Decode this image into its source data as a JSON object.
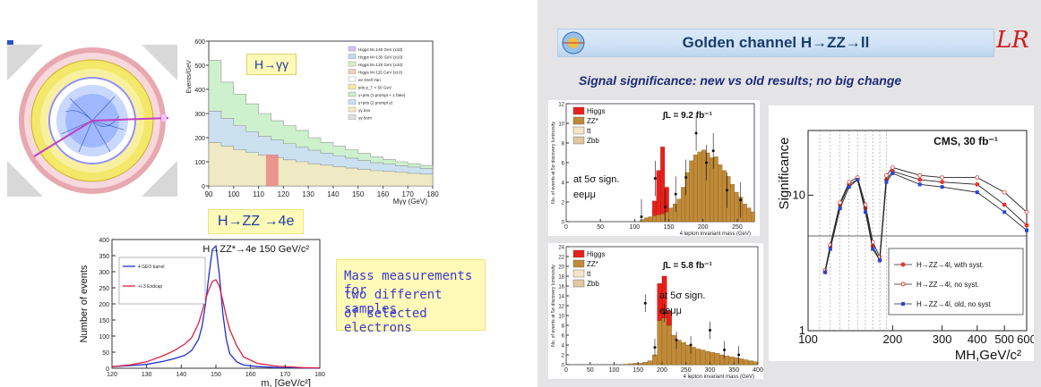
{
  "slide_right": {
    "title": "Golden channel H→ZZ→ll",
    "subtitle": "Signal significance: new vs old results; no big change",
    "logo_text": "LR"
  },
  "left_text": {
    "hgg_label": "H→γγ",
    "hzz4e_title": "H→ZZ →4e",
    "mass_box_line1": "Mass measurements for",
    "mass_box_line2": "two different samples",
    "mass_box_line3": "of selected electrons"
  },
  "chart_data": [
    {
      "type": "area",
      "id": "hgg",
      "xlabel": "Mγγ (GeV)",
      "ylabel": "Events/GeV",
      "xlim": [
        90,
        180
      ],
      "ylim": [
        0,
        600
      ],
      "x_ticks": [
        90,
        100,
        110,
        120,
        130,
        140,
        150,
        160,
        170,
        180
      ],
      "y_ticks": [
        0,
        100,
        200,
        300,
        400,
        500,
        600
      ],
      "legend": [
        "Higgs M=140 GeV (x10)",
        "Higgs M=130 GeV (x10)",
        "Higgs M=120 GeV (x10)",
        "Higgs M=115 GeV (x10)",
        "ee Drell Yan",
        "jets p_T > 50 GeV",
        "γ+jets (1 prompt + 1 fake)",
        "γ+jets (2 prompt γ)",
        "γγ box",
        "γγ born"
      ],
      "legend_position": "top-right",
      "x": [
        90,
        95,
        100,
        105,
        110,
        115,
        120,
        125,
        130,
        135,
        140,
        145,
        150,
        155,
        160,
        165,
        170,
        175,
        180
      ],
      "series": [
        {
          "values": [
            520,
            430,
            380,
            340,
            300,
            270,
            250,
            230,
            200,
            180,
            165,
            150,
            135,
            120,
            110,
            100,
            92,
            85,
            80
          ]
        },
        {
          "values": [
            310,
            280,
            250,
            225,
            205,
            190,
            175,
            160,
            148,
            136,
            125,
            115,
            105,
            96,
            90,
            84,
            78,
            72,
            68
          ]
        },
        {
          "values": [
            180,
            165,
            150,
            138,
            128,
            118,
            108,
            100,
            92,
            86,
            80,
            74,
            68,
            63,
            60,
            56,
            52,
            49,
            46
          ]
        }
      ]
    },
    {
      "type": "line",
      "id": "hzz4e",
      "title": "H→ZZ*→4e 150 GeV/c²",
      "xlabel": "m, [GeV/c²]",
      "ylabel": "Number of events",
      "xlim": [
        120,
        180
      ],
      "ylim": [
        0,
        400
      ],
      "x_ticks": [
        120,
        130,
        140,
        150,
        160,
        170,
        180
      ],
      "y_ticks": [
        0,
        50,
        100,
        150,
        200,
        250,
        300,
        350,
        400
      ],
      "x": [
        120,
        125,
        130,
        135,
        138,
        141,
        143,
        145,
        146,
        147,
        148,
        149,
        150,
        151,
        152,
        153,
        154,
        156,
        158,
        162,
        168,
        175,
        180
      ],
      "series": [
        {
          "values": [
            5,
            8,
            12,
            22,
            30,
            40,
            55,
            90,
            130,
            200,
            290,
            370,
            380,
            290,
            170,
            90,
            45,
            20,
            10,
            5,
            2,
            1,
            0
          ]
        },
        {
          "values": [
            5,
            10,
            20,
            40,
            55,
            75,
            95,
            140,
            175,
            215,
            245,
            270,
            275,
            255,
            210,
            160,
            120,
            70,
            35,
            15,
            6,
            2,
            1
          ]
        }
      ],
      "legend_lines": [
        "4 GEO barrel",
        "+/-3 Endcap"
      ]
    },
    {
      "type": "bar",
      "id": "ll_92",
      "annotation": "∫L = 9.2 fb⁻¹",
      "text_note_line1": "at 5σ sign.",
      "text_note_line2": "eeμμ",
      "xlabel": "4 lepton invariant mass (GeV)",
      "ylabel": "No. of events at 5σ discovery luminosity",
      "xlim": [
        0,
        275
      ],
      "ylim": [
        0,
        12
      ],
      "x_ticks": [
        0,
        50,
        100,
        150,
        200,
        250
      ],
      "y_ticks": [
        0,
        2,
        4,
        6,
        8,
        10,
        12
      ],
      "legend": [
        "Higgs",
        "ZZ*",
        "tt",
        "Zbb"
      ],
      "bin_width": 6,
      "bins_x": [
        108,
        114,
        120,
        126,
        132,
        138,
        144,
        150,
        156,
        162,
        168,
        174,
        180,
        186,
        192,
        198,
        204,
        210,
        216,
        222,
        228,
        234,
        240,
        246,
        252,
        258,
        264,
        270
      ],
      "zz": [
        0.2,
        0.4,
        0.5,
        0.6,
        0.7,
        0.8,
        1.0,
        1.4,
        1.8,
        2.3,
        3.5,
        5.0,
        6.2,
        6.8,
        7.1,
        7.3,
        7.0,
        6.5,
        6.6,
        5.8,
        5.2,
        4.6,
        3.8,
        3.0,
        2.5,
        1.8,
        1.4,
        1.0
      ],
      "higgs": [
        0,
        0,
        0,
        1.5,
        4.5,
        6.8,
        2.5,
        0,
        0,
        0,
        0,
        0,
        0,
        0,
        0,
        0,
        0,
        0,
        0,
        0,
        0,
        0,
        0,
        0,
        0,
        0,
        0,
        0
      ],
      "data_points": [
        [
          110,
          0.5
        ],
        [
          130,
          4.4
        ],
        [
          145,
          1.5
        ],
        [
          160,
          2.8
        ],
        [
          175,
          4.5
        ],
        [
          190,
          9.0
        ],
        [
          205,
          6.0
        ],
        [
          215,
          7.2
        ],
        [
          235,
          3.2
        ],
        [
          255,
          2.2
        ]
      ]
    },
    {
      "type": "bar",
      "id": "ll_58",
      "annotation": "∫L = 5.8 fb⁻¹",
      "text_note_line1": "at 5σ sign.",
      "text_note_line2": "eeμμ",
      "xlabel": "4 lepton invariant mass (GeV)",
      "ylabel": "No. of events at 5σ discovery luminosity",
      "xlim": [
        0,
        400
      ],
      "ylim": [
        0,
        24
      ],
      "x_ticks": [
        0,
        50,
        100,
        150,
        200,
        250,
        300,
        350,
        400
      ],
      "y_ticks": [
        0,
        2,
        4,
        6,
        8,
        10,
        12,
        14,
        16,
        18,
        20,
        22,
        24
      ],
      "legend": [
        "Higgs",
        "ZZ*",
        "tt",
        "Zbb"
      ],
      "bin_width": 10,
      "bins_x": [
        120,
        130,
        140,
        150,
        160,
        170,
        180,
        190,
        200,
        210,
        220,
        230,
        240,
        250,
        260,
        270,
        280,
        290,
        300,
        310,
        320,
        330,
        340,
        350,
        360,
        370,
        380,
        390
      ],
      "zz": [
        0.1,
        0.2,
        0.3,
        0.3,
        0.5,
        0.8,
        2.0,
        9.0,
        9.5,
        8.0,
        6.0,
        5.0,
        4.5,
        4.0,
        3.6,
        3.2,
        3.0,
        2.7,
        2.5,
        2.3,
        2.0,
        1.8,
        1.6,
        1.4,
        1.2,
        1.0,
        0.8,
        0.6
      ],
      "higgs": [
        0,
        0,
        0,
        0,
        0,
        0,
        0,
        7.5,
        8.5,
        3.0,
        0,
        0,
        0,
        0,
        0,
        0,
        0,
        0,
        0,
        0,
        0,
        0,
        0,
        0,
        0,
        0,
        0,
        0
      ],
      "data_points": [
        [
          165,
          12.5
        ],
        [
          185,
          3.5
        ],
        [
          205,
          10.5
        ],
        [
          230,
          5.0
        ],
        [
          260,
          4.0
        ],
        [
          300,
          7.0
        ],
        [
          330,
          3.0
        ],
        [
          360,
          2.0
        ]
      ]
    },
    {
      "type": "line",
      "id": "significance",
      "title": "CMS, 30 fb⁻¹",
      "xlabel": "MH,GeV/c²",
      "ylabel": "Significance",
      "log_x": true,
      "log_y": true,
      "xlim": [
        100,
        600
      ],
      "ylim": [
        1,
        30
      ],
      "x_ticks": [
        100,
        200,
        300,
        400,
        500,
        600
      ],
      "y_ticks": [
        1,
        10
      ],
      "y_reference_line": 5,
      "legend_position": "bottom-right",
      "series": [
        {
          "name": "H→ZZ→4l, with syst.",
          "color": "#e8352a",
          "x": [
            115,
            120,
            130,
            140,
            150,
            160,
            170,
            180,
            190,
            200,
            250,
            300,
            400,
            500,
            600
          ],
          "values": [
            2.7,
            4.2,
            8.5,
            12.0,
            13.0,
            8.0,
            4.2,
            3.3,
            13.0,
            15.0,
            13.0,
            12.5,
            12.0,
            8.5,
            6.0
          ]
        },
        {
          "name": "H→ZZ→4l, no syst.",
          "color": "#e8352a",
          "x": [
            115,
            120,
            130,
            140,
            150,
            160,
            170,
            180,
            190,
            200,
            250,
            300,
            400,
            500,
            600
          ],
          "values": [
            2.8,
            4.3,
            8.8,
            12.5,
            13.5,
            8.5,
            4.5,
            3.5,
            14.0,
            16.0,
            14.0,
            13.5,
            13.5,
            10.5,
            7.5
          ]
        },
        {
          "name": "H→ZZ→4l, old, no syst",
          "color": "#2a45d8",
          "x": [
            115,
            120,
            130,
            140,
            150,
            160,
            170,
            180,
            190,
            200,
            250,
            300,
            400,
            500,
            600
          ],
          "values": [
            2.7,
            4.0,
            8.0,
            11.5,
            13.0,
            7.5,
            4.0,
            3.3,
            12.5,
            14.5,
            12.0,
            11.5,
            10.5,
            7.5,
            5.5
          ]
        }
      ]
    }
  ]
}
